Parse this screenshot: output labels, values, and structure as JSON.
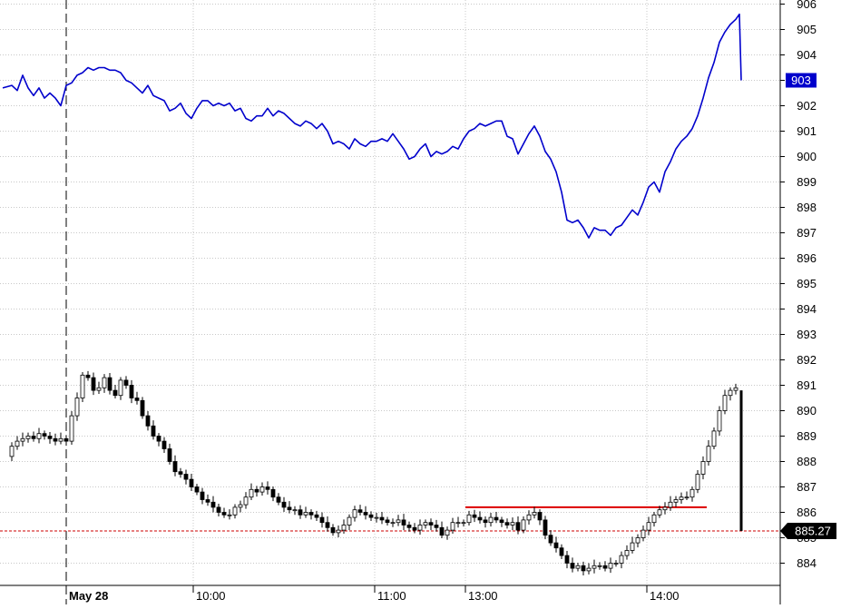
{
  "chart_data": {
    "type": "line",
    "title": "",
    "xlabel": "",
    "ylabel": "",
    "ylim": [
      883.3,
      906.1
    ],
    "grid": true,
    "y_ticks": [
      906,
      905,
      904,
      903,
      902,
      901,
      900,
      899,
      898,
      897,
      896,
      895,
      894,
      893,
      892,
      891,
      890,
      889,
      888,
      887,
      886,
      885,
      884
    ],
    "x_ticks": [
      {
        "label": "May 28",
        "x": 0.3
      },
      {
        "label": "10:00",
        "x": 1.0
      },
      {
        "label": "11:00",
        "x": 2.0
      },
      {
        "label": "13:00",
        "x": 2.5
      },
      {
        "label": "14:00",
        "x": 3.5
      }
    ],
    "session_break": {
      "label": "May 28",
      "x": 0.3
    },
    "series": [
      {
        "color": "#0000cc",
        "points": [
          [
            -0.05,
            902.7
          ],
          [
            0.0,
            902.8
          ],
          [
            0.03,
            902.6
          ],
          [
            0.06,
            903.2
          ],
          [
            0.09,
            902.7
          ],
          [
            0.12,
            902.4
          ],
          [
            0.15,
            902.7
          ],
          [
            0.18,
            902.3
          ],
          [
            0.21,
            902.5
          ],
          [
            0.24,
            902.3
          ],
          [
            0.27,
            902.0
          ],
          [
            0.3,
            902.8
          ],
          [
            0.33,
            902.9
          ],
          [
            0.36,
            903.2
          ],
          [
            0.39,
            903.3
          ],
          [
            0.42,
            903.5
          ],
          [
            0.45,
            903.4
          ],
          [
            0.48,
            903.5
          ],
          [
            0.51,
            903.5
          ],
          [
            0.54,
            903.4
          ],
          [
            0.57,
            903.4
          ],
          [
            0.6,
            903.3
          ],
          [
            0.63,
            903.0
          ],
          [
            0.66,
            902.9
          ],
          [
            0.69,
            902.7
          ],
          [
            0.72,
            902.5
          ],
          [
            0.75,
            902.8
          ],
          [
            0.78,
            902.4
          ],
          [
            0.81,
            902.3
          ],
          [
            0.84,
            902.2
          ],
          [
            0.87,
            901.8
          ],
          [
            0.9,
            901.9
          ],
          [
            0.93,
            902.1
          ],
          [
            0.96,
            901.7
          ],
          [
            0.99,
            901.5
          ],
          [
            1.02,
            901.9
          ],
          [
            1.05,
            902.2
          ],
          [
            1.08,
            902.2
          ],
          [
            1.11,
            902.0
          ],
          [
            1.14,
            902.1
          ],
          [
            1.17,
            902.0
          ],
          [
            1.2,
            902.1
          ],
          [
            1.23,
            901.8
          ],
          [
            1.26,
            901.9
          ],
          [
            1.29,
            901.5
          ],
          [
            1.32,
            901.4
          ],
          [
            1.35,
            901.6
          ],
          [
            1.38,
            901.6
          ],
          [
            1.41,
            901.9
          ],
          [
            1.44,
            901.6
          ],
          [
            1.47,
            901.8
          ],
          [
            1.5,
            901.7
          ],
          [
            1.53,
            901.5
          ],
          [
            1.56,
            901.3
          ],
          [
            1.59,
            901.2
          ],
          [
            1.62,
            901.4
          ],
          [
            1.65,
            901.3
          ],
          [
            1.68,
            901.1
          ],
          [
            1.71,
            901.3
          ],
          [
            1.74,
            901.0
          ],
          [
            1.77,
            900.5
          ],
          [
            1.8,
            900.6
          ],
          [
            1.83,
            900.5
          ],
          [
            1.86,
            900.3
          ],
          [
            1.89,
            900.7
          ],
          [
            1.92,
            900.5
          ],
          [
            1.95,
            900.4
          ],
          [
            1.98,
            900.6
          ],
          [
            2.01,
            900.6
          ],
          [
            2.04,
            900.7
          ],
          [
            2.07,
            900.6
          ],
          [
            2.1,
            900.9
          ],
          [
            2.13,
            900.6
          ],
          [
            2.16,
            900.3
          ],
          [
            2.19,
            899.9
          ],
          [
            2.22,
            900.0
          ],
          [
            2.25,
            900.3
          ],
          [
            2.28,
            900.5
          ],
          [
            2.31,
            900.0
          ],
          [
            2.34,
            900.2
          ],
          [
            2.37,
            900.1
          ],
          [
            2.4,
            900.2
          ],
          [
            2.43,
            900.4
          ],
          [
            2.46,
            900.3
          ],
          [
            2.49,
            900.7
          ],
          [
            2.52,
            901.0
          ],
          [
            2.55,
            901.1
          ],
          [
            2.58,
            901.3
          ],
          [
            2.61,
            901.2
          ],
          [
            2.64,
            901.3
          ],
          [
            2.67,
            901.4
          ],
          [
            2.7,
            901.4
          ],
          [
            2.73,
            900.8
          ],
          [
            2.76,
            900.7
          ],
          [
            2.79,
            900.1
          ],
          [
            2.82,
            900.5
          ],
          [
            2.85,
            900.9
          ],
          [
            2.88,
            901.2
          ],
          [
            2.91,
            900.8
          ],
          [
            2.94,
            900.2
          ],
          [
            2.97,
            899.9
          ],
          [
            3.0,
            899.4
          ],
          [
            3.03,
            898.6
          ],
          [
            3.06,
            897.5
          ],
          [
            3.09,
            897.4
          ],
          [
            3.12,
            897.5
          ],
          [
            3.15,
            897.2
          ],
          [
            3.18,
            896.8
          ],
          [
            3.21,
            897.2
          ],
          [
            3.24,
            897.1
          ],
          [
            3.27,
            897.1
          ],
          [
            3.3,
            896.9
          ],
          [
            3.33,
            897.2
          ],
          [
            3.36,
            897.3
          ],
          [
            3.39,
            897.6
          ],
          [
            3.42,
            897.9
          ],
          [
            3.45,
            897.7
          ],
          [
            3.48,
            898.2
          ],
          [
            3.51,
            898.8
          ],
          [
            3.54,
            899.0
          ],
          [
            3.57,
            898.6
          ],
          [
            3.6,
            899.4
          ],
          [
            3.63,
            899.8
          ],
          [
            3.66,
            900.3
          ],
          [
            3.69,
            900.6
          ],
          [
            3.72,
            900.8
          ],
          [
            3.75,
            901.1
          ],
          [
            3.78,
            901.6
          ],
          [
            3.81,
            902.3
          ],
          [
            3.84,
            903.1
          ],
          [
            3.87,
            903.7
          ],
          [
            3.9,
            904.5
          ],
          [
            3.93,
            904.9
          ],
          [
            3.96,
            905.2
          ],
          [
            3.99,
            905.4
          ],
          [
            4.01,
            905.6
          ],
          [
            4.02,
            903.0
          ]
        ]
      },
      {
        "color": "#000000",
        "style": "candlestick",
        "points": [
          [
            -0.05,
            888.2
          ],
          [
            0.0,
            888.6
          ],
          [
            0.03,
            888.8
          ],
          [
            0.06,
            888.9
          ],
          [
            0.09,
            889.0
          ],
          [
            0.12,
            888.9
          ],
          [
            0.15,
            889.1
          ],
          [
            0.18,
            889.0
          ],
          [
            0.21,
            888.9
          ],
          [
            0.24,
            888.8
          ],
          [
            0.27,
            888.9
          ],
          [
            0.3,
            888.8
          ],
          [
            0.33,
            889.8
          ],
          [
            0.36,
            890.5
          ],
          [
            0.39,
            891.4
          ],
          [
            0.42,
            891.3
          ],
          [
            0.45,
            890.8
          ],
          [
            0.48,
            890.9
          ],
          [
            0.51,
            891.3
          ],
          [
            0.54,
            890.8
          ],
          [
            0.57,
            890.6
          ],
          [
            0.6,
            891.2
          ],
          [
            0.63,
            891.0
          ],
          [
            0.66,
            890.5
          ],
          [
            0.69,
            890.4
          ],
          [
            0.72,
            889.8
          ],
          [
            0.75,
            889.4
          ],
          [
            0.78,
            889.0
          ],
          [
            0.81,
            888.8
          ],
          [
            0.84,
            888.5
          ],
          [
            0.87,
            888.0
          ],
          [
            0.9,
            887.6
          ],
          [
            0.93,
            887.5
          ],
          [
            0.96,
            887.3
          ],
          [
            0.99,
            887.0
          ],
          [
            1.02,
            886.8
          ],
          [
            1.05,
            886.5
          ],
          [
            1.08,
            886.4
          ],
          [
            1.11,
            886.2
          ],
          [
            1.14,
            886.0
          ],
          [
            1.17,
            885.9
          ],
          [
            1.2,
            885.9
          ],
          [
            1.23,
            886.2
          ],
          [
            1.26,
            886.3
          ],
          [
            1.29,
            886.6
          ],
          [
            1.32,
            886.9
          ],
          [
            1.35,
            886.8
          ],
          [
            1.38,
            887.0
          ],
          [
            1.41,
            886.9
          ],
          [
            1.44,
            886.6
          ],
          [
            1.47,
            886.4
          ],
          [
            1.5,
            886.2
          ],
          [
            1.53,
            886.1
          ],
          [
            1.56,
            886.1
          ],
          [
            1.59,
            885.9
          ],
          [
            1.62,
            886.0
          ],
          [
            1.65,
            885.9
          ],
          [
            1.68,
            885.8
          ],
          [
            1.71,
            885.6
          ],
          [
            1.74,
            885.4
          ],
          [
            1.77,
            885.2
          ],
          [
            1.8,
            885.3
          ],
          [
            1.83,
            885.5
          ],
          [
            1.86,
            885.8
          ],
          [
            1.89,
            886.1
          ],
          [
            1.92,
            886.0
          ],
          [
            1.95,
            885.9
          ],
          [
            1.98,
            885.8
          ],
          [
            2.01,
            885.8
          ],
          [
            2.04,
            885.7
          ],
          [
            2.07,
            885.6
          ],
          [
            2.1,
            885.6
          ],
          [
            2.13,
            885.7
          ],
          [
            2.16,
            885.5
          ],
          [
            2.19,
            885.4
          ],
          [
            2.22,
            885.3
          ],
          [
            2.25,
            885.5
          ],
          [
            2.28,
            885.6
          ],
          [
            2.31,
            885.5
          ],
          [
            2.34,
            885.4
          ],
          [
            2.37,
            885.1
          ],
          [
            2.4,
            885.3
          ],
          [
            2.43,
            885.6
          ],
          [
            2.46,
            885.6
          ],
          [
            2.49,
            885.6
          ],
          [
            2.52,
            885.9
          ],
          [
            2.55,
            885.8
          ],
          [
            2.58,
            885.7
          ],
          [
            2.61,
            885.6
          ],
          [
            2.64,
            885.8
          ],
          [
            2.67,
            885.7
          ],
          [
            2.7,
            885.6
          ],
          [
            2.73,
            885.5
          ],
          [
            2.76,
            885.6
          ],
          [
            2.79,
            885.3
          ],
          [
            2.82,
            885.7
          ],
          [
            2.85,
            885.9
          ],
          [
            2.88,
            886.0
          ],
          [
            2.91,
            885.7
          ],
          [
            2.94,
            885.1
          ],
          [
            2.97,
            884.8
          ],
          [
            3.0,
            884.6
          ],
          [
            3.03,
            884.3
          ],
          [
            3.06,
            884.0
          ],
          [
            3.09,
            883.8
          ],
          [
            3.12,
            883.9
          ],
          [
            3.15,
            883.7
          ],
          [
            3.18,
            883.8
          ],
          [
            3.21,
            883.9
          ],
          [
            3.24,
            883.9
          ],
          [
            3.27,
            883.8
          ],
          [
            3.3,
            884.0
          ],
          [
            3.33,
            884.0
          ],
          [
            3.36,
            884.3
          ],
          [
            3.39,
            884.5
          ],
          [
            3.42,
            884.8
          ],
          [
            3.45,
            885.0
          ],
          [
            3.48,
            885.3
          ],
          [
            3.51,
            885.6
          ],
          [
            3.54,
            885.9
          ],
          [
            3.57,
            886.1
          ],
          [
            3.6,
            886.2
          ],
          [
            3.63,
            886.4
          ],
          [
            3.66,
            886.5
          ],
          [
            3.69,
            886.6
          ],
          [
            3.72,
            886.6
          ],
          [
            3.75,
            886.9
          ],
          [
            3.78,
            887.5
          ],
          [
            3.81,
            888.0
          ],
          [
            3.84,
            888.6
          ],
          [
            3.87,
            889.2
          ],
          [
            3.9,
            890.0
          ],
          [
            3.93,
            890.6
          ],
          [
            3.96,
            890.8
          ],
          [
            3.99,
            890.9
          ]
        ]
      }
    ],
    "annotations": {
      "blue_last_value": "903",
      "black_last_value": "885.27",
      "black_last_price": 885.27,
      "resistance_line": {
        "x_start": 2.5,
        "x_end": 3.83,
        "y": 886.2
      },
      "final_bar": {
        "x": 4.02,
        "y_high": 890.8,
        "y_low": 885.27
      }
    }
  }
}
